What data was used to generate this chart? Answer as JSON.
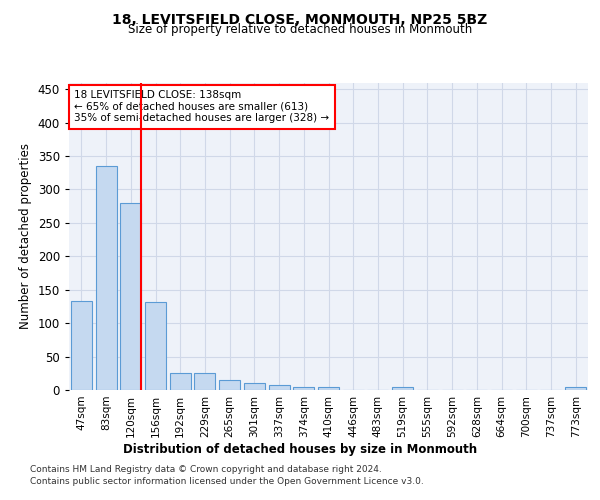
{
  "title": "18, LEVITSFIELD CLOSE, MONMOUTH, NP25 5BZ",
  "subtitle": "Size of property relative to detached houses in Monmouth",
  "xlabel": "Distribution of detached houses by size in Monmouth",
  "ylabel": "Number of detached properties",
  "categories": [
    "47sqm",
    "83sqm",
    "120sqm",
    "156sqm",
    "192sqm",
    "229sqm",
    "265sqm",
    "301sqm",
    "337sqm",
    "374sqm",
    "410sqm",
    "446sqm",
    "483sqm",
    "519sqm",
    "555sqm",
    "592sqm",
    "628sqm",
    "664sqm",
    "700sqm",
    "737sqm",
    "773sqm"
  ],
  "values": [
    133,
    335,
    280,
    132,
    26,
    26,
    15,
    11,
    7,
    5,
    5,
    0,
    0,
    4,
    0,
    0,
    0,
    0,
    0,
    0,
    4
  ],
  "bar_color": "#c5d9f0",
  "bar_edge_color": "#5b9bd5",
  "bar_edge_width": 0.8,
  "annotation_lines": [
    "18 LEVITSFIELD CLOSE: 138sqm",
    "← 65% of detached houses are smaller (613)",
    "35% of semi-detached houses are larger (328) →"
  ],
  "annotation_box_color": "white",
  "annotation_box_edge_color": "red",
  "red_line_color": "red",
  "grid_color": "#d0d8e8",
  "background_color": "white",
  "plot_bg_color": "#eef2f9",
  "ylim": [
    0,
    460
  ],
  "yticks": [
    0,
    50,
    100,
    150,
    200,
    250,
    300,
    350,
    400,
    450
  ],
  "footer_line1": "Contains HM Land Registry data © Crown copyright and database right 2024.",
  "footer_line2": "Contains public sector information licensed under the Open Government Licence v3.0."
}
